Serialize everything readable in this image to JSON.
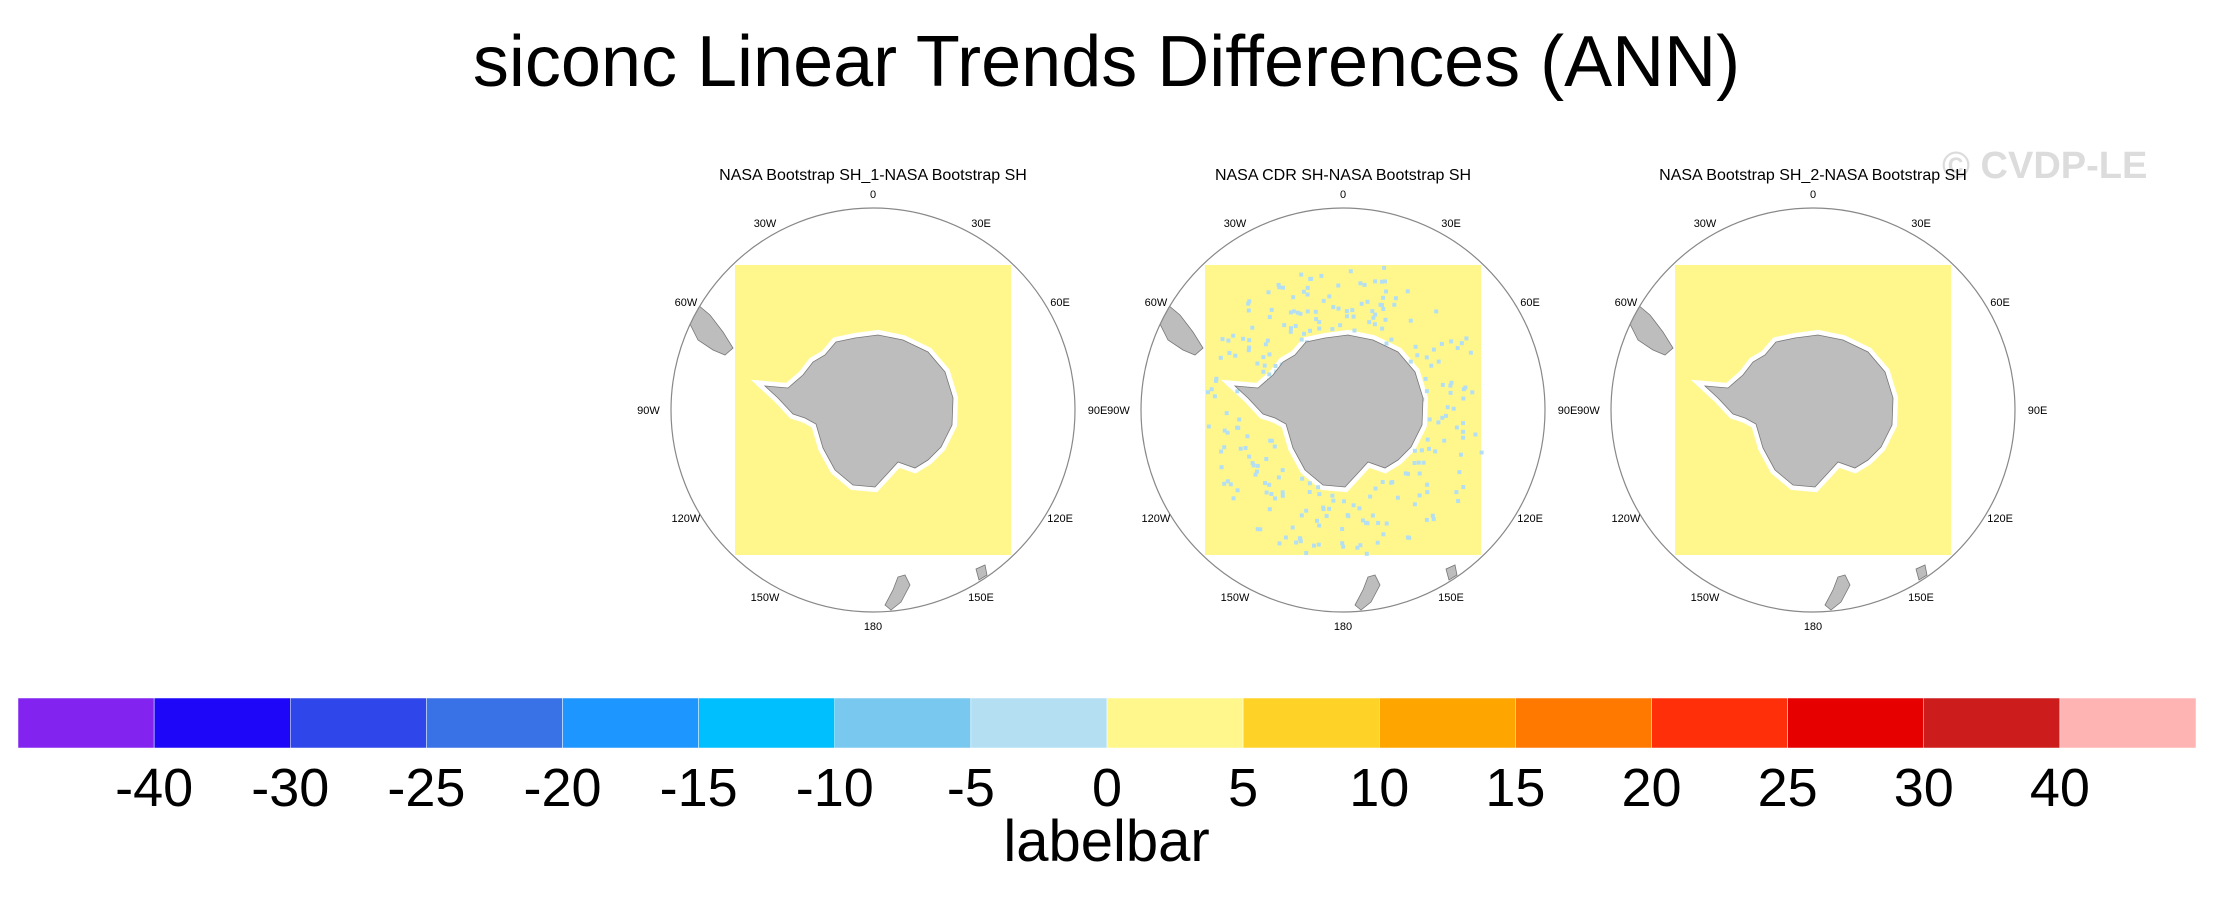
{
  "figure": {
    "title": "siconc Linear Trends Differences (ANN)",
    "watermark": "© CVDP-LE",
    "labelbar_title": "labelbar"
  },
  "chart_data": {
    "type": "heatmap",
    "projection": "south-polar-stereographic",
    "title": "siconc Linear Trends Differences (ANN)",
    "panels": [
      {
        "title": "NASA Bootstrap SH_1-NASA Bootstrap SH",
        "field_class": "0 to 5",
        "scattered_class": null,
        "scattered_cell_count": 0
      },
      {
        "title": "NASA CDR SH-NASA Bootstrap SH",
        "field_class": "0 to 5",
        "scattered_class": "-5 to 0",
        "scattered_cell_count": 260
      },
      {
        "title": "NASA Bootstrap SH_2-NASA Bootstrap SH",
        "field_class": "0 to 5",
        "scattered_class": null,
        "scattered_cell_count": 0
      }
    ],
    "longitude_labels": [
      "0",
      "30E",
      "60E",
      "90E",
      "120E",
      "150E",
      "180",
      "150W",
      "120W",
      "90W",
      "60W",
      "30W"
    ],
    "colorbar": {
      "title": "labelbar",
      "levels": [
        -40,
        -30,
        -25,
        -20,
        -15,
        -10,
        -5,
        0,
        5,
        10,
        15,
        20,
        25,
        30,
        40
      ],
      "level_labels": [
        "-40",
        "-30",
        "-25",
        "-20",
        "-15",
        "-10",
        "-5",
        "0",
        "5",
        "10",
        "15",
        "20",
        "25",
        "30",
        "40"
      ],
      "colors": [
        "#8323f0",
        "#1e06f8",
        "#2e46ea",
        "#3971e6",
        "#1e96ff",
        "#00bfff",
        "#78c8f0",
        "#b4dff3",
        "#fff78c",
        "#ffd228",
        "#ffa500",
        "#ff7800",
        "#ff2f0a",
        "#e60000",
        "#cd1c1c",
        "#ffb4b4"
      ]
    }
  }
}
